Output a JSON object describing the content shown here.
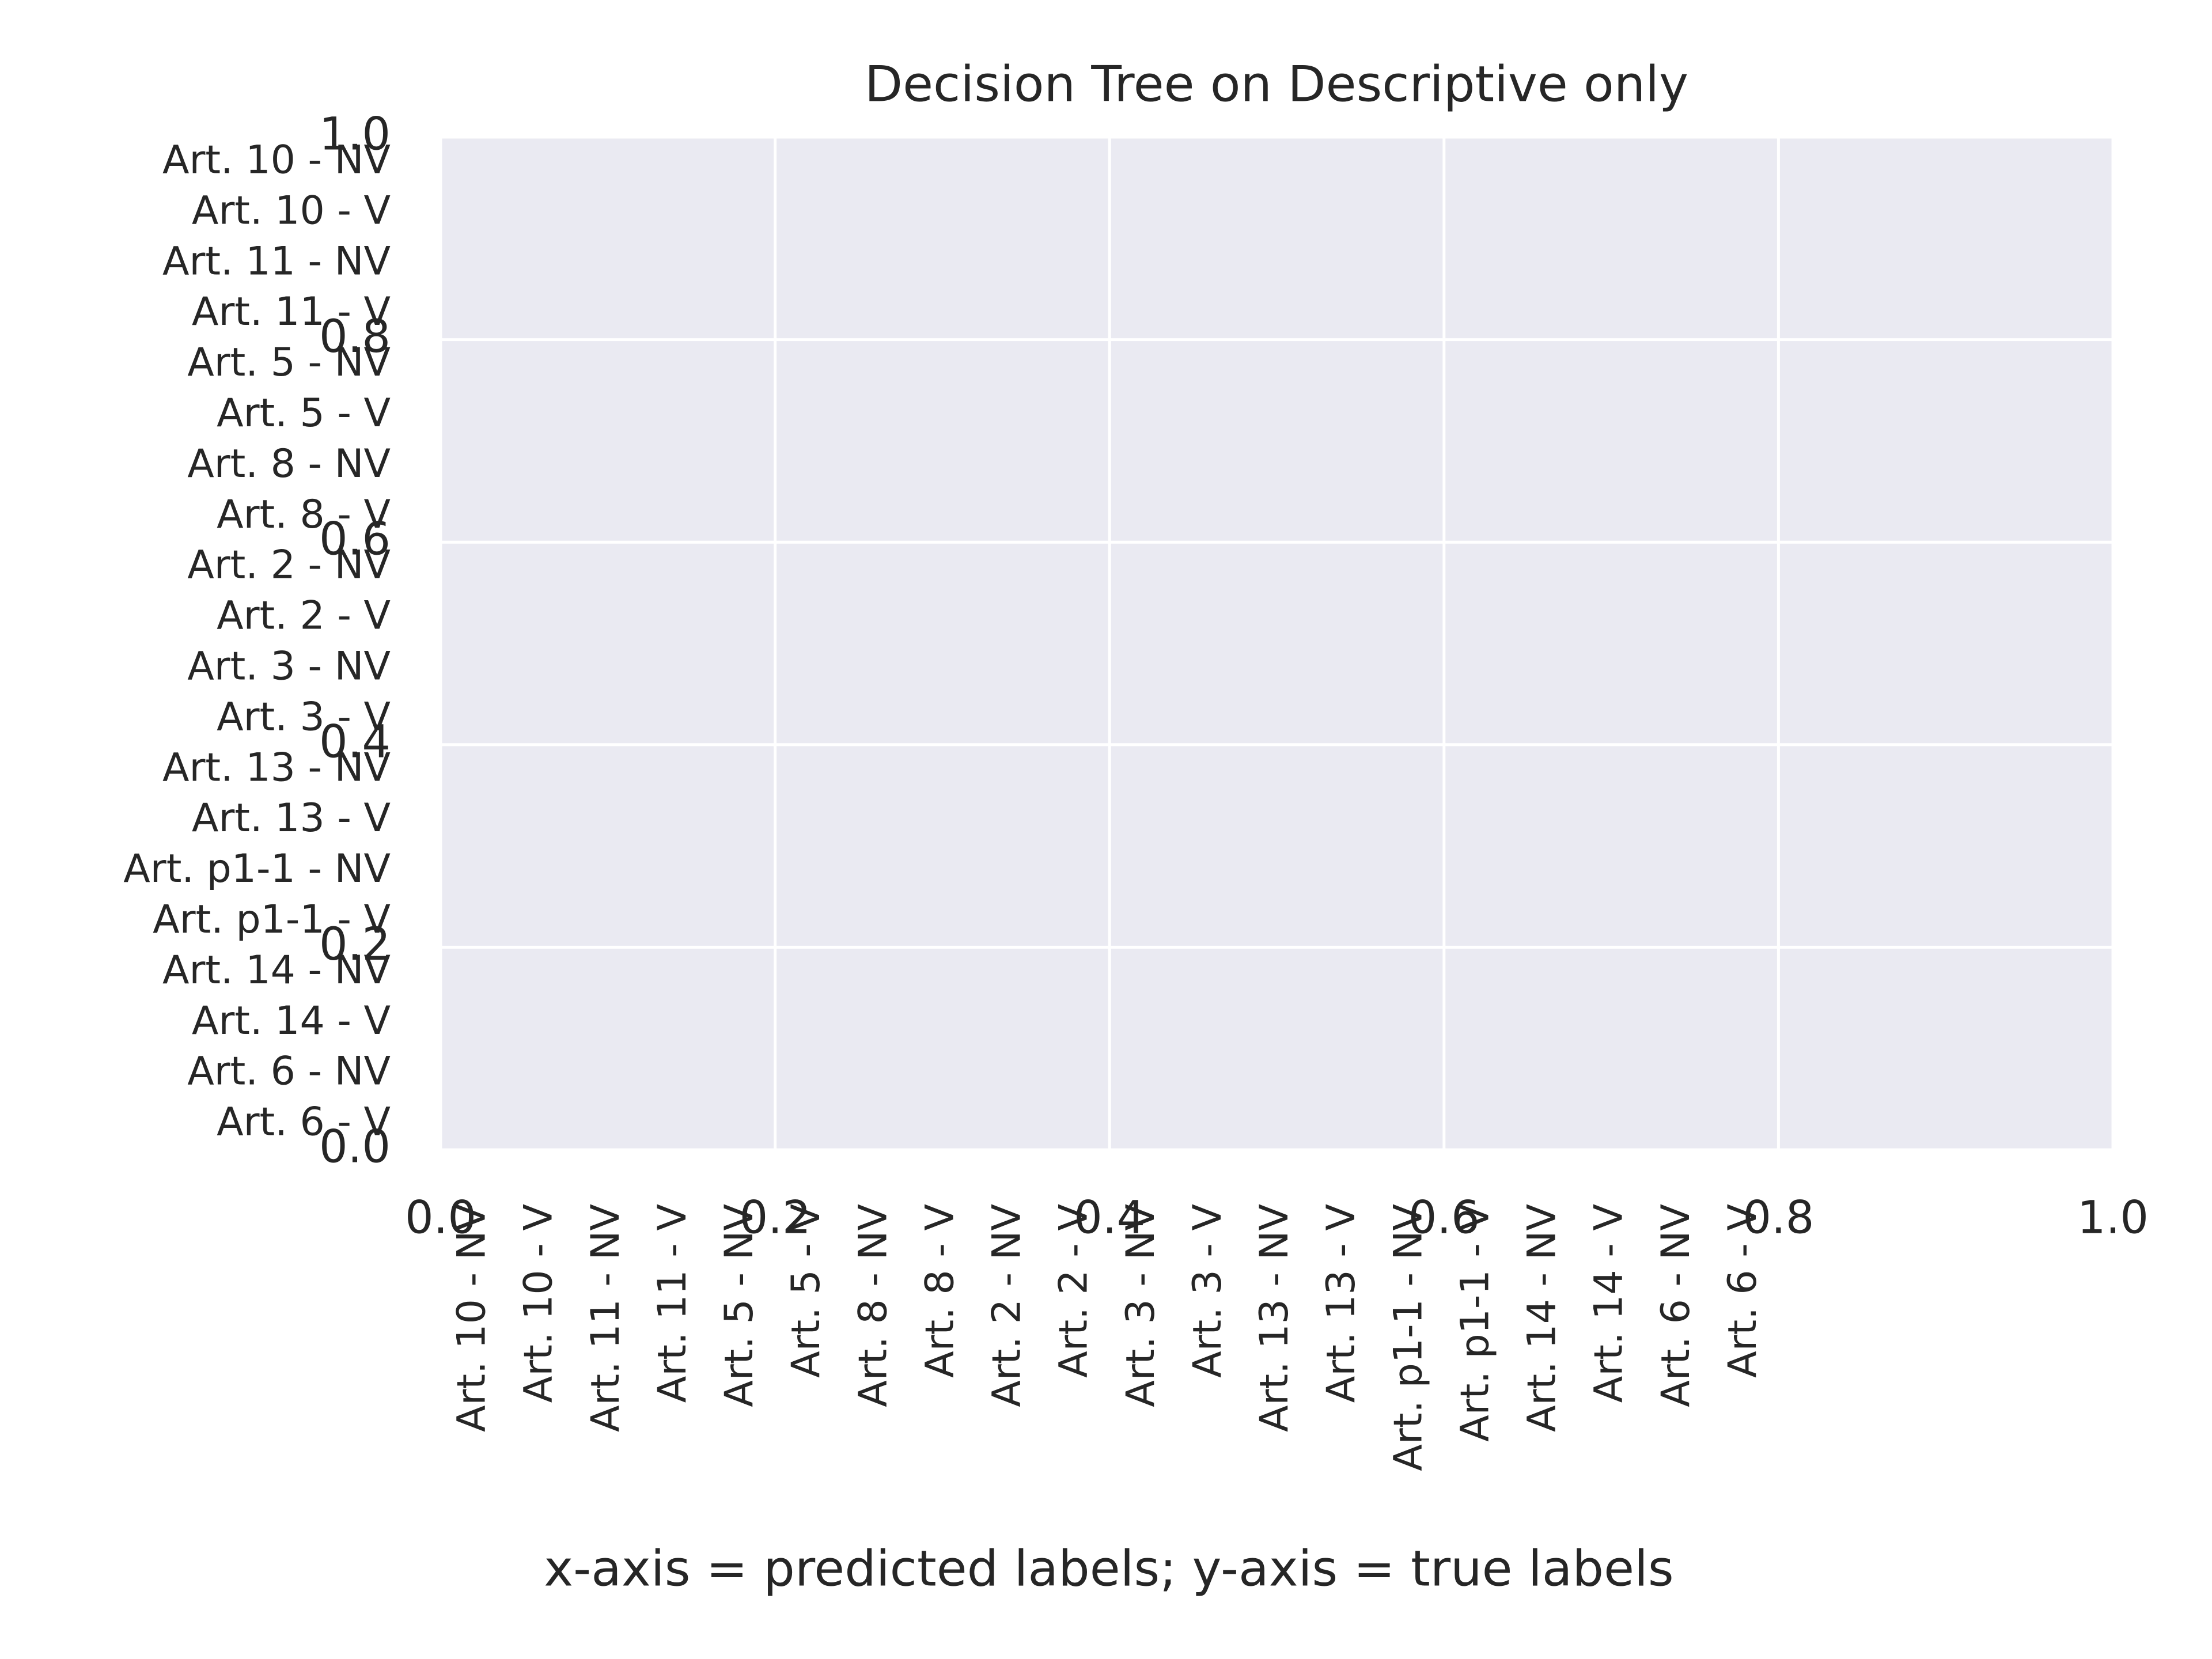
{
  "chart_data": {
    "type": "heatmap",
    "title": "Decision Tree on Descriptive only",
    "xlabel": "x-axis = predicted labels; y-axis = true labels",
    "x_categories": [
      "Art. 10 - NV",
      "Art. 10 - V",
      "Art. 11 - NV",
      "Art. 11 - V",
      "Art. 5 - NV",
      "Art. 5 - V",
      "Art. 8 - NV",
      "Art. 8 - V",
      "Art. 2 - NV",
      "Art. 2 - V",
      "Art. 3 - NV",
      "Art. 3 - V",
      "Art. 13 - NV",
      "Art. 13 - V",
      "Art. p1-1 - NV",
      "Art. p1-1 - V",
      "Art. 14 - NV",
      "Art. 14 - V",
      "Art. 6 - NV",
      "Art. 6 - V"
    ],
    "y_categories": [
      "Art. 10 - NV",
      "Art. 10 - V",
      "Art. 11 - NV",
      "Art. 11 - V",
      "Art. 5 - NV",
      "Art. 5 - V",
      "Art. 8 - NV",
      "Art. 8 - V",
      "Art. 2 - NV",
      "Art. 2 - V",
      "Art. 3 - NV",
      "Art. 3 - V",
      "Art. 13 - NV",
      "Art. 13 - V",
      "Art. p1-1 - NV",
      "Art. p1-1 - V",
      "Art. 14 - NV",
      "Art. 14 - V",
      "Art. 6 - NV",
      "Art. 6 - V"
    ],
    "xlim": [
      0,
      1
    ],
    "ylim": [
      0,
      1
    ],
    "xticks": [
      {
        "value": 0,
        "label": "0.0"
      },
      0.2,
      0.4,
      0.6,
      0.8,
      {
        "value": 1,
        "label": "1.0"
      }
    ],
    "yticks": [
      {
        "value": 0,
        "label": "0.0"
      },
      0.2,
      0.4,
      0.6,
      0.8,
      {
        "value": 1,
        "label": "1.0"
      }
    ],
    "grid": true,
    "background": "#eaeaf2"
  }
}
